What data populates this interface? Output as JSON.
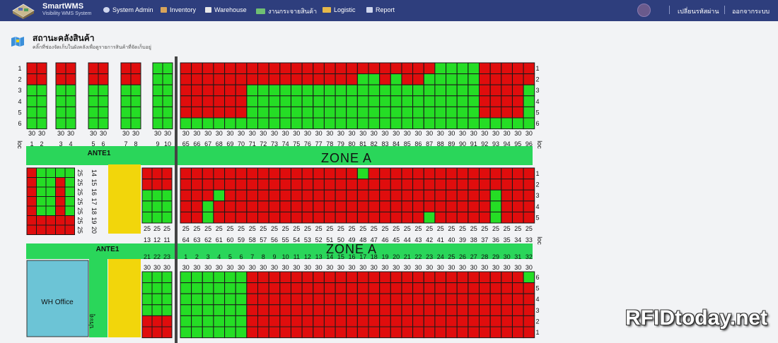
{
  "app": {
    "name": "SmartWMS",
    "subtitle": "Visibility WMS System",
    "menu": [
      {
        "label": "System Admin",
        "icon": "gear-icon"
      },
      {
        "label": "Inventory",
        "icon": "box-icon"
      },
      {
        "label": "Warehouse",
        "icon": "warehouse-icon"
      },
      {
        "label": "งานกระจายสินค้า",
        "icon": "truck-icon"
      },
      {
        "label": "Logistic",
        "icon": "delivery-truck-icon"
      },
      {
        "label": "Report",
        "icon": "report-icon"
      }
    ],
    "user_links": {
      "change_password": "เปลี่ยนรหัสผ่าน",
      "logout": "ออกจากระบบ"
    }
  },
  "page": {
    "title": "สถานะคลังสินค้า",
    "subtitle": "คลิ๊กที่ช่องจัดเก็บในผังคลังเพื่อดูรายการสินค้าที่จัดเก็บอยู่",
    "title_icon": "map-icon"
  },
  "colors": {
    "occupied": "#e00d0d",
    "available": "#25dd25",
    "zone_bar": "#2ad65a",
    "aisle": "#f2d60b",
    "wh_office": "#6cc4d6",
    "divider": "#444444",
    "nav": "#2e3e7d"
  },
  "legend_text": {
    "loc": "loc",
    "ante1": "ANTE1",
    "zone_a": "ZONE A",
    "wh_office": "WH Office",
    "gate": "ประตู"
  },
  "block1": {
    "row_labels": [
      "1",
      "2",
      "3",
      "4",
      "5",
      "6"
    ],
    "left_cols": [
      {
        "locs": [
          "1",
          "2"
        ],
        "caps": [
          "30",
          "30"
        ],
        "occ": [
          [
            1,
            1
          ],
          [
            1,
            1
          ],
          [
            0,
            0
          ],
          [
            0,
            0
          ],
          [
            0,
            0
          ],
          [
            0,
            0
          ]
        ]
      },
      {
        "locs": [
          "3",
          "4"
        ],
        "caps": [
          "30",
          "30"
        ],
        "occ": [
          [
            1,
            1
          ],
          [
            1,
            1
          ],
          [
            0,
            0
          ],
          [
            0,
            0
          ],
          [
            0,
            0
          ],
          [
            0,
            0
          ]
        ]
      },
      {
        "locs": [
          "5",
          "6"
        ],
        "caps": [
          "30",
          "30"
        ],
        "occ": [
          [
            1,
            1
          ],
          [
            1,
            1
          ],
          [
            0,
            0
          ],
          [
            0,
            0
          ],
          [
            0,
            0
          ],
          [
            0,
            0
          ]
        ]
      },
      {
        "locs": [
          "7",
          "8"
        ],
        "caps": [
          "30",
          "30"
        ],
        "occ": [
          [
            1,
            1
          ],
          [
            1,
            1
          ],
          [
            0,
            0
          ],
          [
            0,
            0
          ],
          [
            0,
            0
          ],
          [
            0,
            0
          ]
        ]
      },
      {
        "locs": [
          "9",
          "10"
        ],
        "caps": [
          "30",
          "30"
        ],
        "occ": [
          [
            0,
            0
          ],
          [
            0,
            0
          ],
          [
            0,
            0
          ],
          [
            0,
            0
          ],
          [
            0,
            0
          ],
          [
            0,
            0
          ]
        ]
      }
    ],
    "right_locs": [
      "65",
      "66",
      "67",
      "68",
      "69",
      "70",
      "71",
      "72",
      "73",
      "74",
      "75",
      "76",
      "77",
      "78",
      "79",
      "80",
      "81",
      "82",
      "83",
      "84",
      "85",
      "86",
      "87",
      "88",
      "89",
      "90",
      "91",
      "92",
      "93",
      "94",
      "95",
      "96"
    ],
    "right_caps": [
      "30",
      "30",
      "30",
      "30",
      "30",
      "30",
      "30",
      "30",
      "30",
      "30",
      "30",
      "30",
      "30",
      "30",
      "30",
      "30",
      "30",
      "30",
      "30",
      "30",
      "30",
      "30",
      "30",
      "30",
      "30",
      "30",
      "30",
      "30",
      "30",
      "30",
      "30",
      "30"
    ],
    "right_occ": [
      [
        1,
        1,
        1,
        1,
        1,
        1,
        1,
        1,
        1,
        1,
        1,
        1,
        1,
        1,
        1,
        1,
        1,
        1,
        1,
        1,
        1,
        1,
        1,
        0,
        0,
        0,
        0,
        1,
        1,
        1,
        1,
        1
      ],
      [
        1,
        1,
        1,
        1,
        1,
        1,
        1,
        1,
        1,
        1,
        1,
        1,
        1,
        1,
        1,
        1,
        0,
        0,
        1,
        0,
        1,
        1,
        0,
        0,
        0,
        0,
        0,
        1,
        1,
        1,
        1,
        1
      ],
      [
        1,
        1,
        1,
        1,
        1,
        1,
        0,
        0,
        0,
        0,
        0,
        0,
        0,
        0,
        0,
        0,
        0,
        0,
        0,
        0,
        0,
        0,
        0,
        0,
        0,
        0,
        0,
        1,
        1,
        1,
        1,
        0
      ],
      [
        1,
        1,
        1,
        1,
        1,
        1,
        0,
        0,
        0,
        0,
        0,
        0,
        0,
        0,
        0,
        0,
        0,
        0,
        0,
        0,
        0,
        0,
        0,
        0,
        0,
        0,
        0,
        1,
        1,
        1,
        1,
        0
      ],
      [
        1,
        1,
        1,
        1,
        1,
        1,
        0,
        0,
        0,
        0,
        0,
        0,
        0,
        0,
        0,
        0,
        0,
        0,
        0,
        0,
        0,
        0,
        0,
        0,
        0,
        0,
        0,
        1,
        1,
        1,
        1,
        0
      ],
      [
        0,
        0,
        0,
        0,
        0,
        0,
        0,
        0,
        0,
        0,
        0,
        0,
        0,
        0,
        0,
        0,
        0,
        0,
        0,
        0,
        0,
        0,
        0,
        0,
        0,
        0,
        0,
        0,
        0,
        0,
        0,
        0
      ]
    ]
  },
  "block2": {
    "row_labels": [
      "1",
      "2",
      "3",
      "4",
      "5"
    ],
    "left_rows": [
      "14",
      "15",
      "16",
      "17",
      "18",
      "19",
      "20"
    ],
    "left_caps": [
      "25",
      "25",
      "25",
      "25",
      "25",
      "25",
      "25"
    ],
    "left_occ": [
      [
        1,
        0,
        0,
        0,
        0
      ],
      [
        1,
        0,
        0,
        1,
        0
      ],
      [
        1,
        0,
        0,
        1,
        0
      ],
      [
        1,
        0,
        0,
        1,
        0
      ],
      [
        1,
        0,
        0,
        1,
        0
      ],
      [
        1,
        1,
        1,
        1,
        1
      ],
      [
        1,
        1,
        1,
        1,
        1
      ]
    ],
    "mid_locs": [
      "13",
      "12",
      "11"
    ],
    "mid_caps": [
      "25",
      "25",
      "25"
    ],
    "mid_occ": [
      [
        1,
        1,
        1
      ],
      [
        1,
        1,
        1
      ],
      [
        0,
        0,
        0
      ],
      [
        0,
        0,
        0
      ],
      [
        0,
        0,
        0
      ]
    ],
    "right_locs": [
      "64",
      "63",
      "62",
      "61",
      "60",
      "59",
      "58",
      "57",
      "56",
      "55",
      "54",
      "53",
      "52",
      "51",
      "50",
      "49",
      "48",
      "47",
      "46",
      "45",
      "44",
      "43",
      "42",
      "41",
      "40",
      "39",
      "38",
      "37",
      "36",
      "35",
      "34",
      "33"
    ],
    "right_caps": [
      "25",
      "25",
      "25",
      "25",
      "25",
      "25",
      "25",
      "25",
      "25",
      "25",
      "25",
      "25",
      "25",
      "25",
      "25",
      "25",
      "25",
      "25",
      "25",
      "25",
      "25",
      "25",
      "25",
      "25",
      "25",
      "25",
      "25",
      "25",
      "25",
      "25",
      "25",
      "25"
    ],
    "right_occ": [
      [
        1,
        1,
        1,
        1,
        1,
        1,
        1,
        1,
        1,
        1,
        1,
        1,
        1,
        1,
        1,
        1,
        0,
        1,
        1,
        1,
        1,
        1,
        1,
        1,
        1,
        1,
        1,
        1,
        1,
        1,
        1,
        1
      ],
      [
        1,
        1,
        1,
        1,
        1,
        1,
        1,
        1,
        1,
        1,
        1,
        1,
        1,
        1,
        1,
        1,
        1,
        1,
        1,
        1,
        1,
        1,
        1,
        1,
        1,
        1,
        1,
        1,
        1,
        1,
        1,
        1
      ],
      [
        1,
        1,
        1,
        0,
        1,
        1,
        1,
        1,
        1,
        1,
        1,
        1,
        1,
        1,
        1,
        1,
        1,
        1,
        1,
        1,
        1,
        1,
        1,
        1,
        1,
        1,
        1,
        1,
        0,
        1,
        1,
        1
      ],
      [
        1,
        1,
        0,
        1,
        1,
        1,
        1,
        1,
        1,
        1,
        1,
        1,
        1,
        1,
        1,
        1,
        1,
        1,
        1,
        1,
        1,
        1,
        1,
        1,
        1,
        1,
        1,
        1,
        0,
        1,
        1,
        1
      ],
      [
        1,
        1,
        0,
        1,
        1,
        1,
        1,
        1,
        1,
        1,
        1,
        1,
        1,
        1,
        1,
        1,
        1,
        1,
        1,
        1,
        1,
        1,
        0,
        1,
        1,
        1,
        1,
        1,
        0,
        1,
        1,
        1
      ]
    ]
  },
  "block3": {
    "row_labels": [
      "6",
      "5",
      "4",
      "3",
      "2",
      "1"
    ],
    "left_locs": [
      "21",
      "22",
      "23"
    ],
    "left_caps": [
      "30",
      "30",
      "30"
    ],
    "left_occ": [
      [
        0,
        0,
        0
      ],
      [
        0,
        0,
        0
      ],
      [
        0,
        0,
        0
      ],
      [
        0,
        0,
        0
      ],
      [
        1,
        1,
        1
      ],
      [
        1,
        1,
        1
      ]
    ],
    "right_locs": [
      "1",
      "2",
      "3",
      "4",
      "5",
      "6",
      "7",
      "8",
      "9",
      "10",
      "11",
      "12",
      "13",
      "14",
      "15",
      "16",
      "17",
      "18",
      "19",
      "20",
      "21",
      "22",
      "23",
      "24",
      "25",
      "26",
      "27",
      "28",
      "29",
      "30",
      "31",
      "32"
    ],
    "right_caps": [
      "30",
      "30",
      "30",
      "30",
      "30",
      "30",
      "30",
      "30",
      "30",
      "30",
      "30",
      "30",
      "30",
      "30",
      "30",
      "30",
      "30",
      "30",
      "30",
      "30",
      "30",
      "30",
      "30",
      "30",
      "30",
      "30",
      "30",
      "30",
      "30",
      "30",
      "30",
      "30"
    ],
    "right_occ": [
      [
        0,
        0,
        0,
        0,
        0,
        0,
        1,
        1,
        1,
        1,
        1,
        1,
        1,
        1,
        1,
        1,
        1,
        1,
        1,
        1,
        1,
        1,
        1,
        1,
        1,
        1,
        1,
        1,
        1,
        1,
        1,
        0
      ],
      [
        0,
        0,
        0,
        0,
        0,
        0,
        1,
        1,
        1,
        1,
        1,
        1,
        1,
        1,
        1,
        1,
        1,
        1,
        1,
        1,
        1,
        1,
        1,
        1,
        1,
        1,
        1,
        1,
        1,
        1,
        1,
        1
      ],
      [
        0,
        0,
        0,
        0,
        0,
        0,
        1,
        1,
        1,
        1,
        1,
        1,
        1,
        1,
        1,
        1,
        1,
        1,
        1,
        1,
        1,
        1,
        1,
        1,
        1,
        1,
        1,
        1,
        1,
        1,
        1,
        1
      ],
      [
        0,
        0,
        0,
        0,
        0,
        0,
        1,
        1,
        1,
        1,
        1,
        1,
        1,
        1,
        1,
        1,
        1,
        1,
        1,
        1,
        1,
        1,
        1,
        1,
        1,
        1,
        1,
        1,
        1,
        1,
        1,
        1
      ],
      [
        0,
        0,
        0,
        0,
        0,
        0,
        1,
        1,
        1,
        1,
        1,
        1,
        1,
        1,
        1,
        1,
        1,
        1,
        1,
        1,
        1,
        1,
        1,
        1,
        1,
        1,
        1,
        1,
        1,
        1,
        1,
        1
      ],
      [
        0,
        0,
        0,
        0,
        0,
        0,
        1,
        1,
        1,
        1,
        1,
        1,
        1,
        1,
        1,
        1,
        1,
        1,
        1,
        1,
        1,
        1,
        1,
        1,
        1,
        1,
        1,
        1,
        1,
        1,
        1,
        1
      ]
    ]
  },
  "watermark": "RFIDtoday.net"
}
